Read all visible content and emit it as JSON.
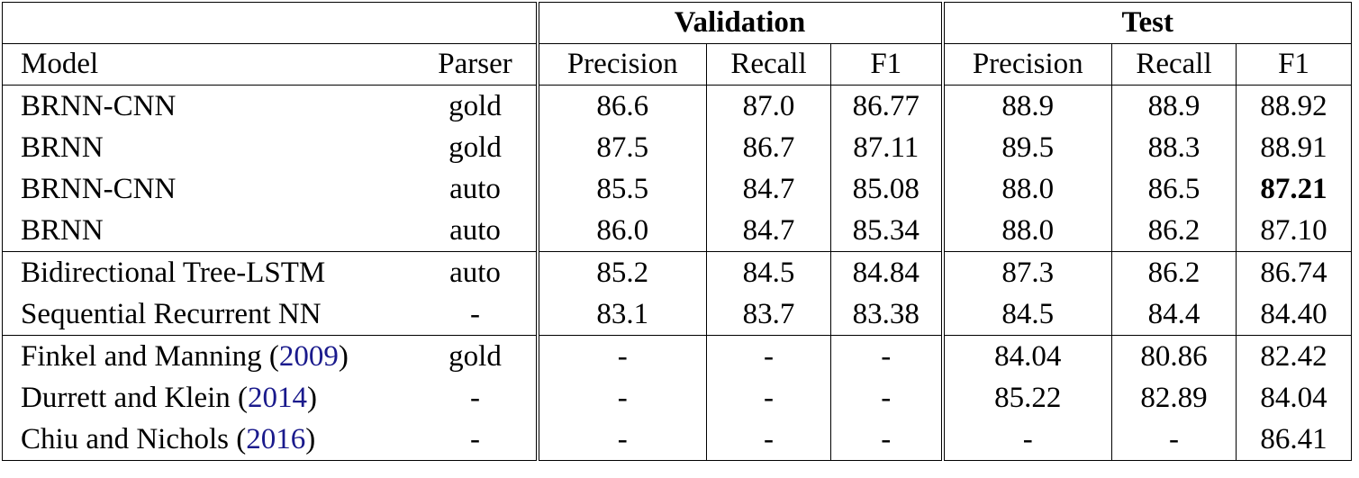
{
  "groups": {
    "validation": "Validation",
    "test": "Test"
  },
  "columns": {
    "model": "Model",
    "parser": "Parser",
    "val_precision": "Precision",
    "val_recall": "Recall",
    "val_f1": "F1",
    "test_precision": "Precision",
    "test_recall": "Recall",
    "test_f1": "F1"
  },
  "rows": [
    {
      "model": "BRNN-CNN",
      "cite": "",
      "parser": "gold",
      "vp": "86.6",
      "vr": "87.0",
      "vf": "86.77",
      "tp": "88.9",
      "tr": "88.9",
      "tf": "88.92"
    },
    {
      "model": "BRNN",
      "cite": "",
      "parser": "gold",
      "vp": "87.5",
      "vr": "86.7",
      "vf": "87.11",
      "tp": "89.5",
      "tr": "88.3",
      "tf": "88.91"
    },
    {
      "model": "BRNN-CNN",
      "cite": "",
      "parser": "auto",
      "vp": "85.5",
      "vr": "84.7",
      "vf": "85.08",
      "tp": "88.0",
      "tr": "86.5",
      "tf": "87.21"
    },
    {
      "model": "BRNN",
      "cite": "",
      "parser": "auto",
      "vp": "86.0",
      "vr": "84.7",
      "vf": "85.34",
      "tp": "88.0",
      "tr": "86.2",
      "tf": "87.10"
    },
    {
      "model": "Bidirectional Tree-LSTM",
      "cite": "",
      "parser": "auto",
      "vp": "85.2",
      "vr": "84.5",
      "vf": "84.84",
      "tp": "87.3",
      "tr": "86.2",
      "tf": "86.74"
    },
    {
      "model": "Sequential Recurrent NN",
      "cite": "",
      "parser": "-",
      "vp": "83.1",
      "vr": "83.7",
      "vf": "83.38",
      "tp": "84.5",
      "tr": "84.4",
      "tf": "84.40"
    },
    {
      "model": "Finkel and Manning (",
      "cite": "2009",
      "parser": "gold",
      "vp": "-",
      "vr": "-",
      "vf": "-",
      "tp": "84.04",
      "tr": "80.86",
      "tf": "82.42"
    },
    {
      "model": "Durrett and Klein (",
      "cite": "2014",
      "parser": "-",
      "vp": "-",
      "vr": "-",
      "vf": "-",
      "tp": "85.22",
      "tr": "82.89",
      "tf": "84.04"
    },
    {
      "model": "Chiu and Nichols (",
      "cite": "2016",
      "parser": "-",
      "vp": "-",
      "vr": "-",
      "vf": "-",
      "tp": "-",
      "tr": "-",
      "tf": "86.41"
    }
  ]
}
